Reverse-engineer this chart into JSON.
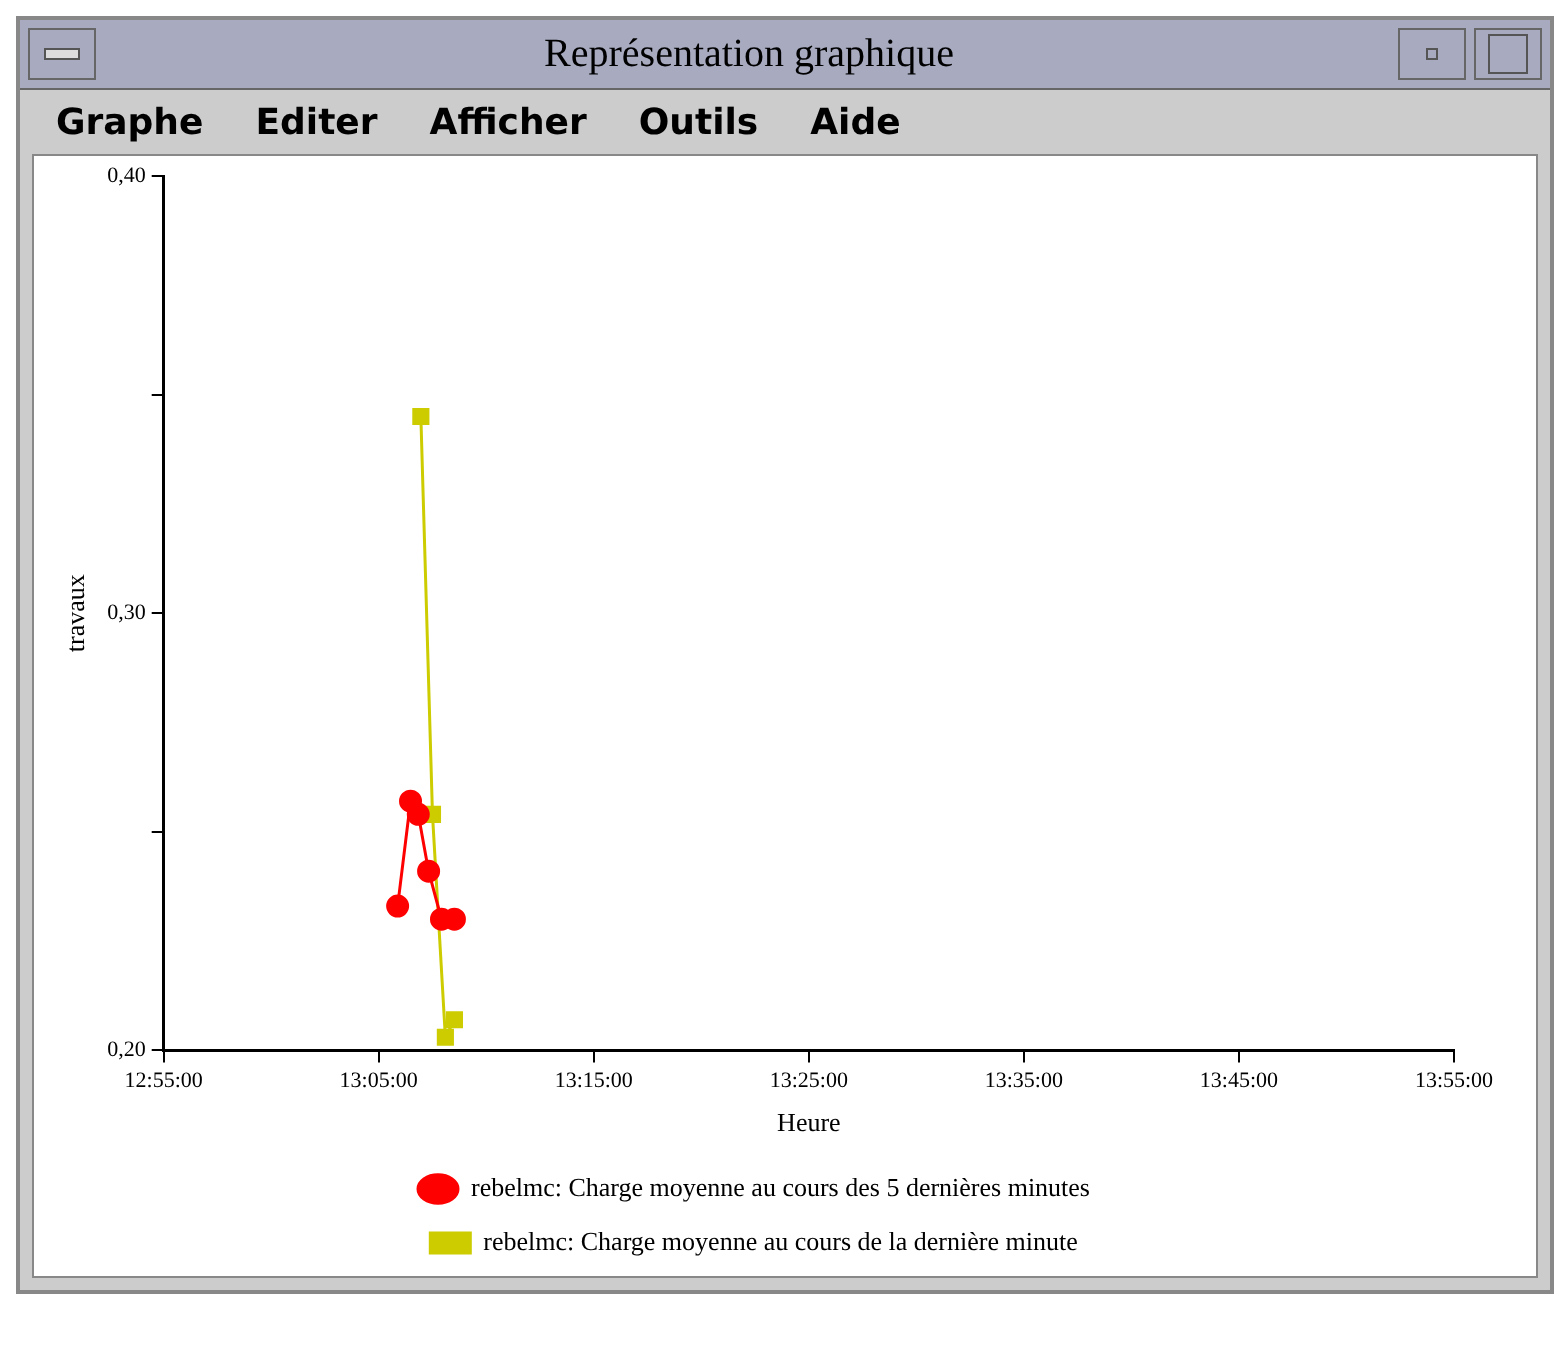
{
  "chart_data": {
    "type": "line",
    "title": "Représentation graphique",
    "annotations": [
      "Graphe",
      "Editer",
      "Afficher",
      "Outils",
      "Aide"
    ],
    "xlabel": "Heure",
    "ylabel": "travaux",
    "xlim": [
      12.9167,
      13.9167
    ],
    "xticks": [
      {
        "value": 12.9167,
        "label": "12:55:00"
      },
      {
        "value": 13.0833,
        "label": "13:05:00"
      },
      {
        "value": 13.25,
        "label": "13:15:00"
      },
      {
        "value": 13.4167,
        "label": "13:25:00"
      },
      {
        "value": 13.5833,
        "label": "13:35:00"
      },
      {
        "value": 13.75,
        "label": "13:45:00"
      },
      {
        "value": 13.9167,
        "label": "13:55:00"
      }
    ],
    "ylim": [
      0.2,
      0.4
    ],
    "yticks": [
      {
        "value": 0.2,
        "label": "0,20"
      },
      {
        "value": 0.25,
        "label": null
      },
      {
        "value": 0.3,
        "label": "0,30"
      },
      {
        "value": 0.35,
        "label": null
      },
      {
        "value": 0.4,
        "label": "0,40"
      }
    ],
    "grid": false,
    "legend": "bottom",
    "line_style": "solid",
    "series": [
      {
        "name": "rebelmc: Charge moyenne au cours des 5 dernières minutes",
        "color": "#ff0000",
        "marker": "circle",
        "x": [
          13.098,
          13.108,
          13.114,
          13.122,
          13.132,
          13.142
        ],
        "values": [
          0.233,
          0.257,
          0.254,
          0.241,
          0.23,
          0.23
        ]
      },
      {
        "name": "rebelmc: Charge moyenne au cours de la dernière minute",
        "color": "#cccc00",
        "marker": "square",
        "x": [
          13.116,
          13.125,
          13.135,
          13.142
        ],
        "values": [
          0.345,
          0.254,
          0.203,
          0.207
        ]
      }
    ]
  }
}
